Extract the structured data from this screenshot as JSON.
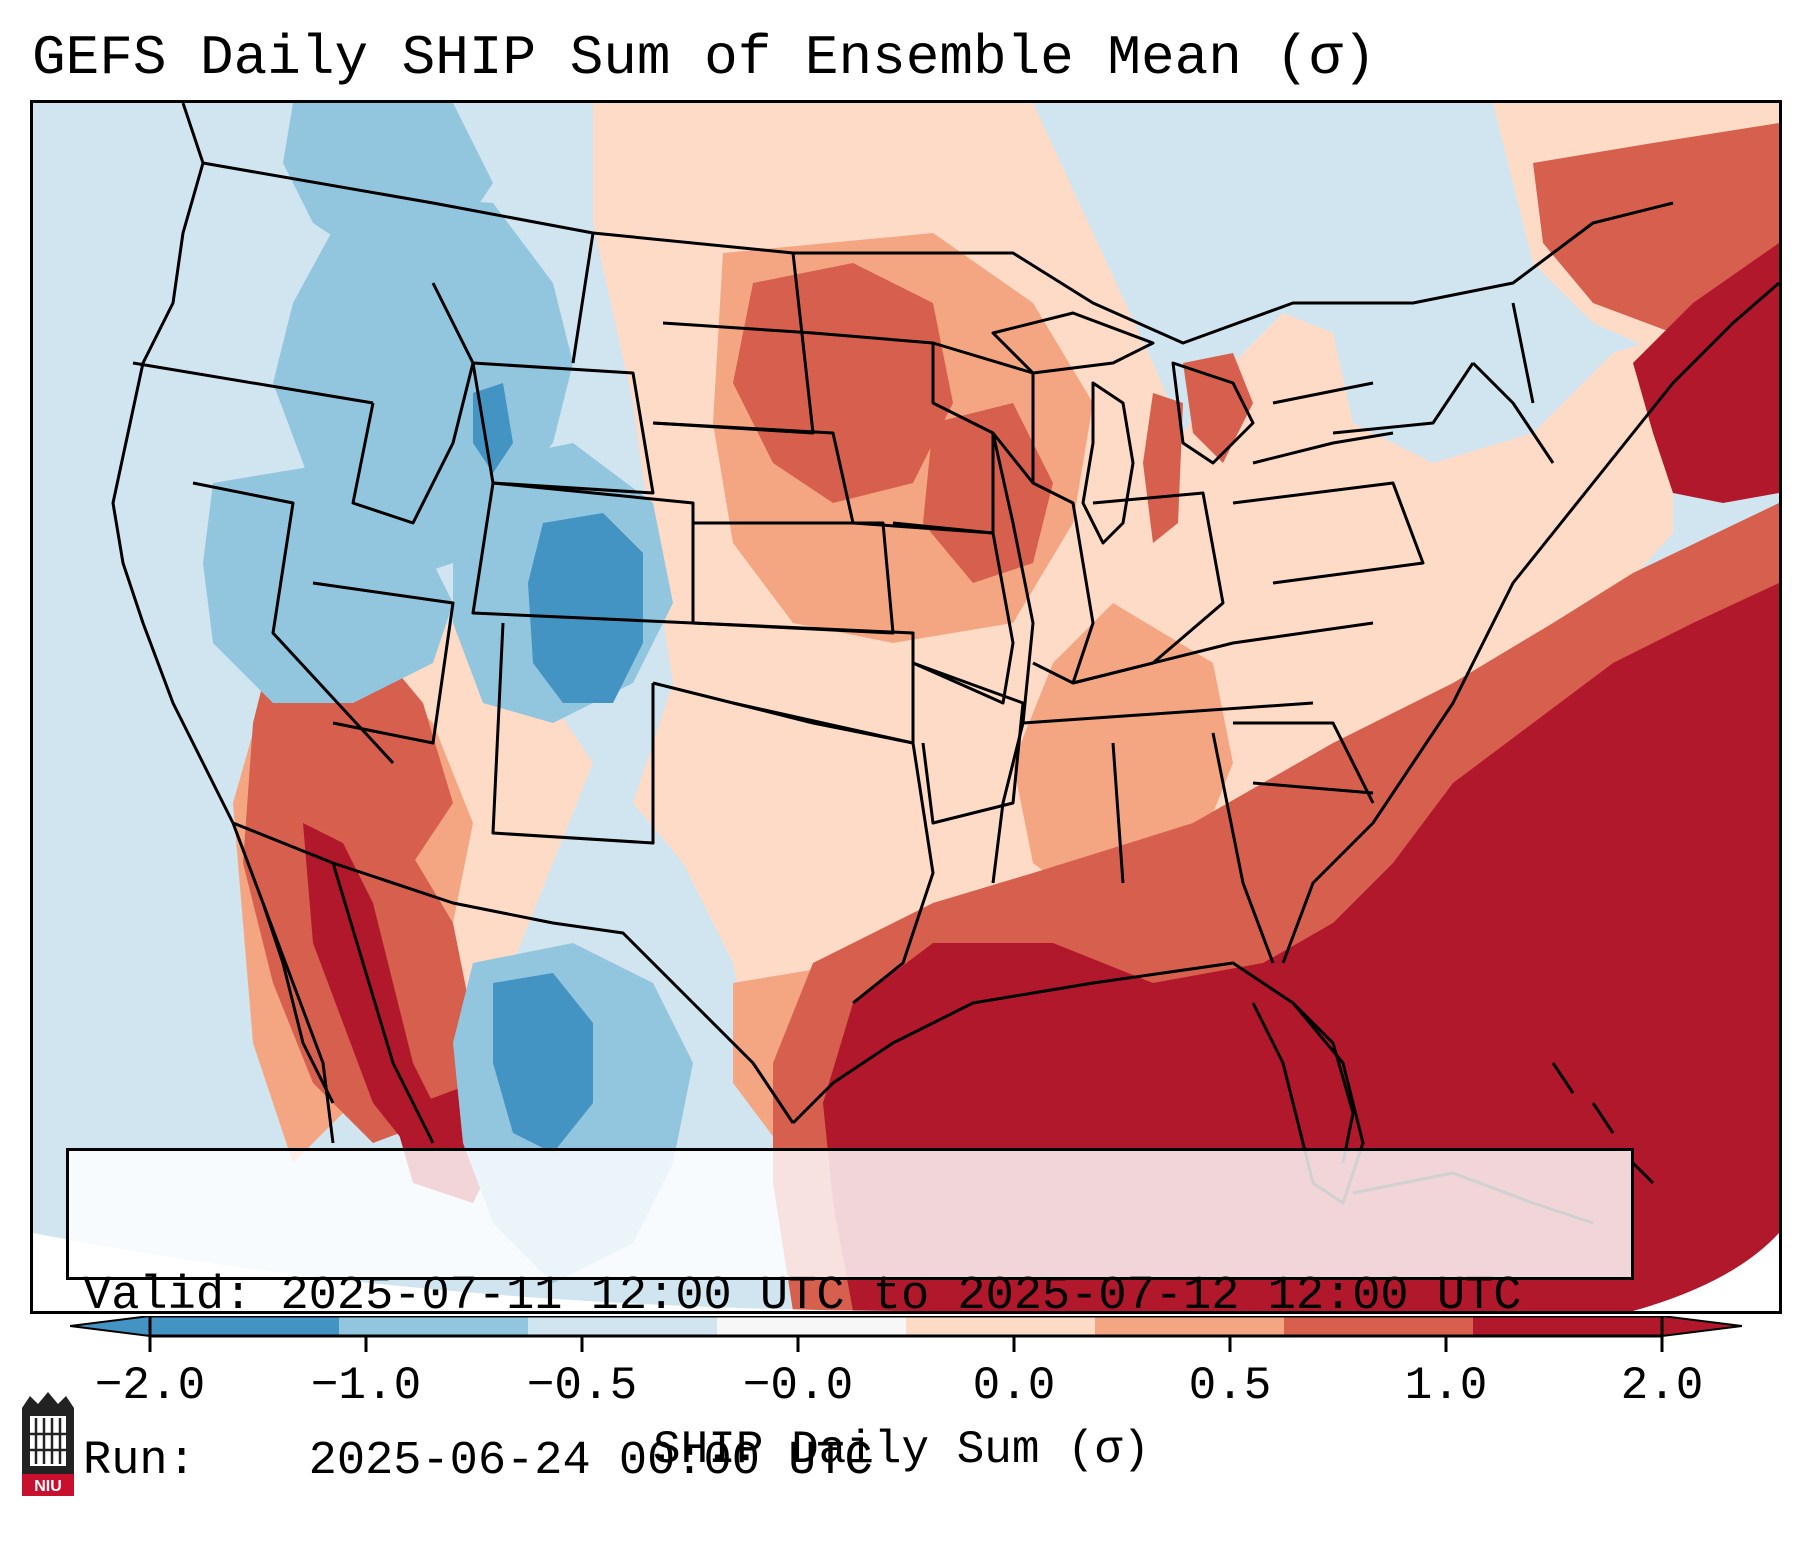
{
  "title": "GEFS Daily SHIP Sum of Ensemble Mean (σ)",
  "info": {
    "valid_label": "Valid:",
    "valid_value": "2025-07-11 12:00 UTC to 2025-07-12 12:00 UTC",
    "run_label": "Run:",
    "run_value": "2025-06-24 00:00 UTC"
  },
  "colorbar": {
    "label": "SHIP Daily Sum (σ)",
    "ticks": [
      "−2.0",
      "−1.0",
      "−0.5",
      "−0.0",
      "0.0",
      "0.5",
      "1.0",
      "2.0"
    ],
    "colors": [
      "#4393c3",
      "#92c5de",
      "#d1e5f0",
      "#f7f7f7",
      "#fddbc7",
      "#f4a582",
      "#d6604d",
      "#b2182b"
    ],
    "extend": "both"
  },
  "map_fill": {
    "strong_negative": "#4393c3",
    "negative": "#92c5de",
    "weak_negative": "#d1e5f0",
    "weak_positive": "#fddbc7",
    "positive": "#f4a582",
    "strong_positive": "#d6604d",
    "extreme_positive": "#b2182b"
  },
  "logo": {
    "text": "NIU",
    "color": "#c8102e"
  }
}
